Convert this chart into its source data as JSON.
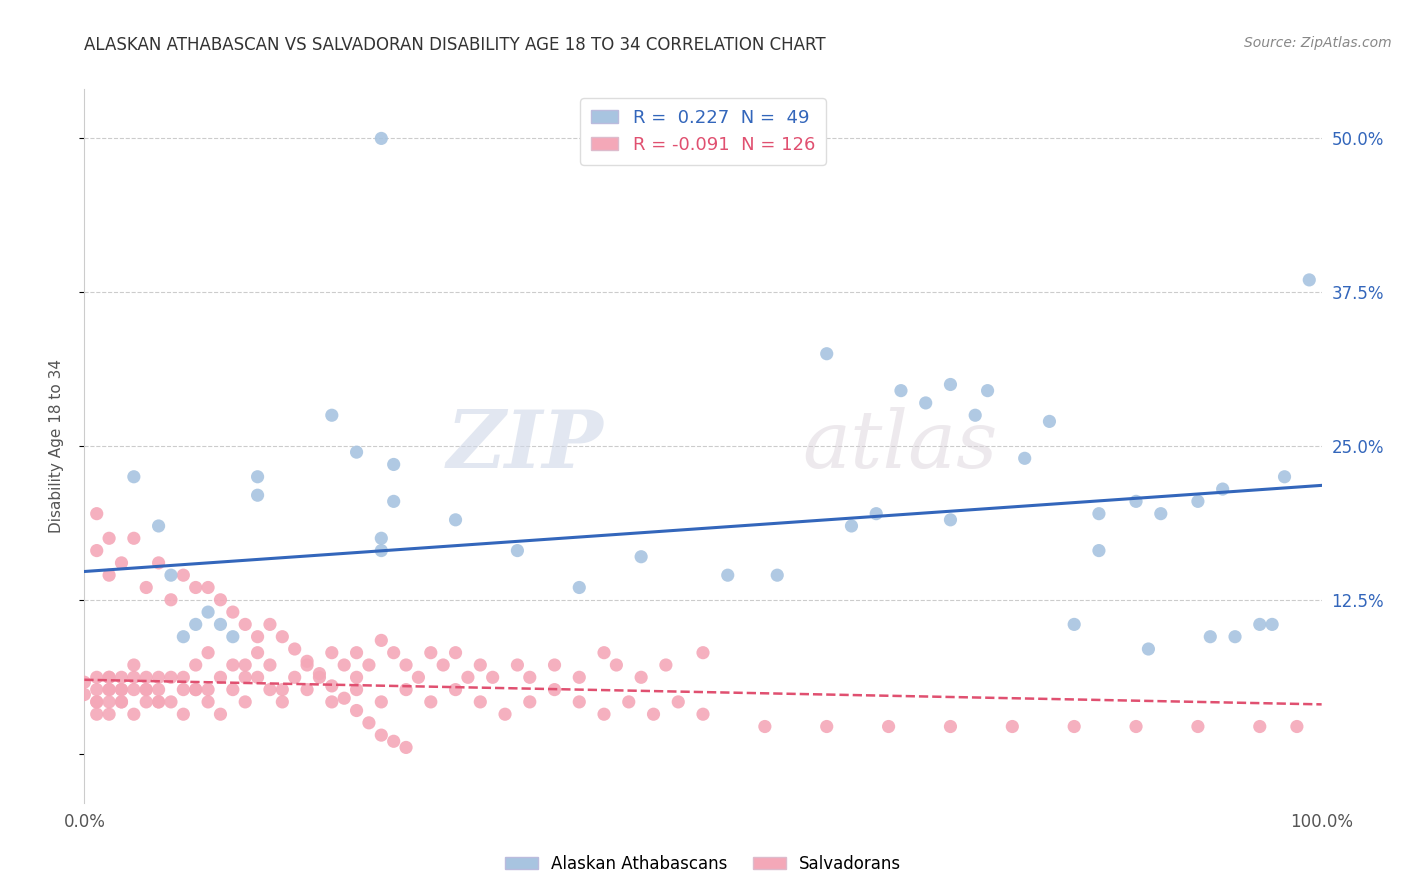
{
  "title": "ALASKAN ATHABASCAN VS SALVADORAN DISABILITY AGE 18 TO 34 CORRELATION CHART",
  "source": "Source: ZipAtlas.com",
  "ylabel": "Disability Age 18 to 34",
  "xlim": [
    0.0,
    1.0
  ],
  "ylim": [
    -0.04,
    0.54
  ],
  "xticks": [
    0.0,
    1.0
  ],
  "xticklabels": [
    "0.0%",
    "100.0%"
  ],
  "yticks": [
    0.0,
    0.125,
    0.25,
    0.375,
    0.5
  ],
  "right_yticklabels": [
    "",
    "12.5%",
    "25.0%",
    "37.5%",
    "50.0%"
  ],
  "blue_color": "#A8C4E0",
  "pink_color": "#F4A8B8",
  "blue_line_color": "#3366BB",
  "pink_line_color": "#E05070",
  "watermark_zip": "ZIP",
  "watermark_atlas": "atlas",
  "blue_scatter_x": [
    0.24,
    0.24,
    0.06,
    0.07,
    0.08,
    0.09,
    0.1,
    0.11,
    0.12,
    0.04,
    0.14,
    0.14,
    0.2,
    0.22,
    0.25,
    0.25,
    0.3,
    0.35,
    0.4,
    0.45,
    0.52,
    0.62,
    0.64,
    0.66,
    0.68,
    0.7,
    0.72,
    0.76,
    0.8,
    0.82,
    0.85,
    0.87,
    0.9,
    0.92,
    0.95,
    0.97,
    0.99,
    0.24,
    0.6,
    0.7,
    0.73,
    0.78,
    0.82,
    0.86,
    0.91,
    0.93,
    0.96,
    0.56
  ],
  "blue_scatter_y": [
    0.175,
    0.165,
    0.185,
    0.145,
    0.095,
    0.105,
    0.115,
    0.105,
    0.095,
    0.225,
    0.225,
    0.21,
    0.275,
    0.245,
    0.235,
    0.205,
    0.19,
    0.165,
    0.135,
    0.16,
    0.145,
    0.185,
    0.195,
    0.295,
    0.285,
    0.3,
    0.275,
    0.24,
    0.105,
    0.195,
    0.205,
    0.195,
    0.205,
    0.215,
    0.105,
    0.225,
    0.385,
    0.5,
    0.325,
    0.19,
    0.295,
    0.27,
    0.165,
    0.085,
    0.095,
    0.095,
    0.105,
    0.145
  ],
  "pink_scatter_x": [
    0.0,
    0.0,
    0.01,
    0.01,
    0.01,
    0.01,
    0.01,
    0.02,
    0.02,
    0.02,
    0.02,
    0.02,
    0.02,
    0.03,
    0.03,
    0.03,
    0.03,
    0.04,
    0.04,
    0.04,
    0.05,
    0.05,
    0.05,
    0.06,
    0.06,
    0.06,
    0.07,
    0.07,
    0.08,
    0.08,
    0.09,
    0.09,
    0.1,
    0.1,
    0.11,
    0.12,
    0.12,
    0.13,
    0.13,
    0.14,
    0.14,
    0.15,
    0.16,
    0.17,
    0.18,
    0.19,
    0.2,
    0.21,
    0.22,
    0.22,
    0.23,
    0.24,
    0.25,
    0.26,
    0.27,
    0.28,
    0.29,
    0.3,
    0.31,
    0.32,
    0.33,
    0.35,
    0.36,
    0.38,
    0.4,
    0.42,
    0.43,
    0.45,
    0.47,
    0.5,
    0.03,
    0.04,
    0.05,
    0.06,
    0.08,
    0.09,
    0.1,
    0.11,
    0.13,
    0.15,
    0.16,
    0.18,
    0.2,
    0.22,
    0.24,
    0.26,
    0.28,
    0.3,
    0.32,
    0.34,
    0.36,
    0.38,
    0.4,
    0.42,
    0.44,
    0.46,
    0.48,
    0.5,
    0.55,
    0.6,
    0.65,
    0.7,
    0.75,
    0.8,
    0.85,
    0.9,
    0.95,
    0.98,
    0.01,
    0.01,
    0.02,
    0.02,
    0.03,
    0.04,
    0.05,
    0.06,
    0.07,
    0.08,
    0.09,
    0.1,
    0.11,
    0.12,
    0.13,
    0.14,
    0.15,
    0.16,
    0.17,
    0.18,
    0.19,
    0.2,
    0.21,
    0.22,
    0.23,
    0.24,
    0.25,
    0.26
  ],
  "pink_scatter_y": [
    0.058,
    0.048,
    0.042,
    0.052,
    0.062,
    0.042,
    0.032,
    0.062,
    0.052,
    0.042,
    0.062,
    0.052,
    0.032,
    0.052,
    0.062,
    0.042,
    0.052,
    0.062,
    0.052,
    0.072,
    0.042,
    0.062,
    0.052,
    0.042,
    0.062,
    0.052,
    0.042,
    0.062,
    0.052,
    0.062,
    0.072,
    0.052,
    0.052,
    0.082,
    0.062,
    0.072,
    0.052,
    0.062,
    0.072,
    0.062,
    0.082,
    0.072,
    0.052,
    0.062,
    0.072,
    0.062,
    0.082,
    0.072,
    0.062,
    0.082,
    0.072,
    0.092,
    0.082,
    0.072,
    0.062,
    0.082,
    0.072,
    0.082,
    0.062,
    0.072,
    0.062,
    0.072,
    0.062,
    0.072,
    0.062,
    0.082,
    0.072,
    0.062,
    0.072,
    0.082,
    0.042,
    0.032,
    0.052,
    0.042,
    0.032,
    0.052,
    0.042,
    0.032,
    0.042,
    0.052,
    0.042,
    0.052,
    0.042,
    0.052,
    0.042,
    0.052,
    0.042,
    0.052,
    0.042,
    0.032,
    0.042,
    0.052,
    0.042,
    0.032,
    0.042,
    0.032,
    0.042,
    0.032,
    0.022,
    0.022,
    0.022,
    0.022,
    0.022,
    0.022,
    0.022,
    0.022,
    0.022,
    0.022,
    0.195,
    0.165,
    0.175,
    0.145,
    0.155,
    0.175,
    0.135,
    0.155,
    0.125,
    0.145,
    0.135,
    0.135,
    0.125,
    0.115,
    0.105,
    0.095,
    0.105,
    0.095,
    0.085,
    0.075,
    0.065,
    0.055,
    0.045,
    0.035,
    0.025,
    0.015,
    0.01,
    0.005
  ],
  "blue_trendline_x": [
    0.0,
    1.0
  ],
  "blue_trendline_y": [
    0.148,
    0.218
  ],
  "pink_trendline_x": [
    0.0,
    1.0
  ],
  "pink_trendline_y": [
    0.06,
    0.04
  ],
  "background_color": "#ffffff",
  "grid_color": "#cccccc"
}
